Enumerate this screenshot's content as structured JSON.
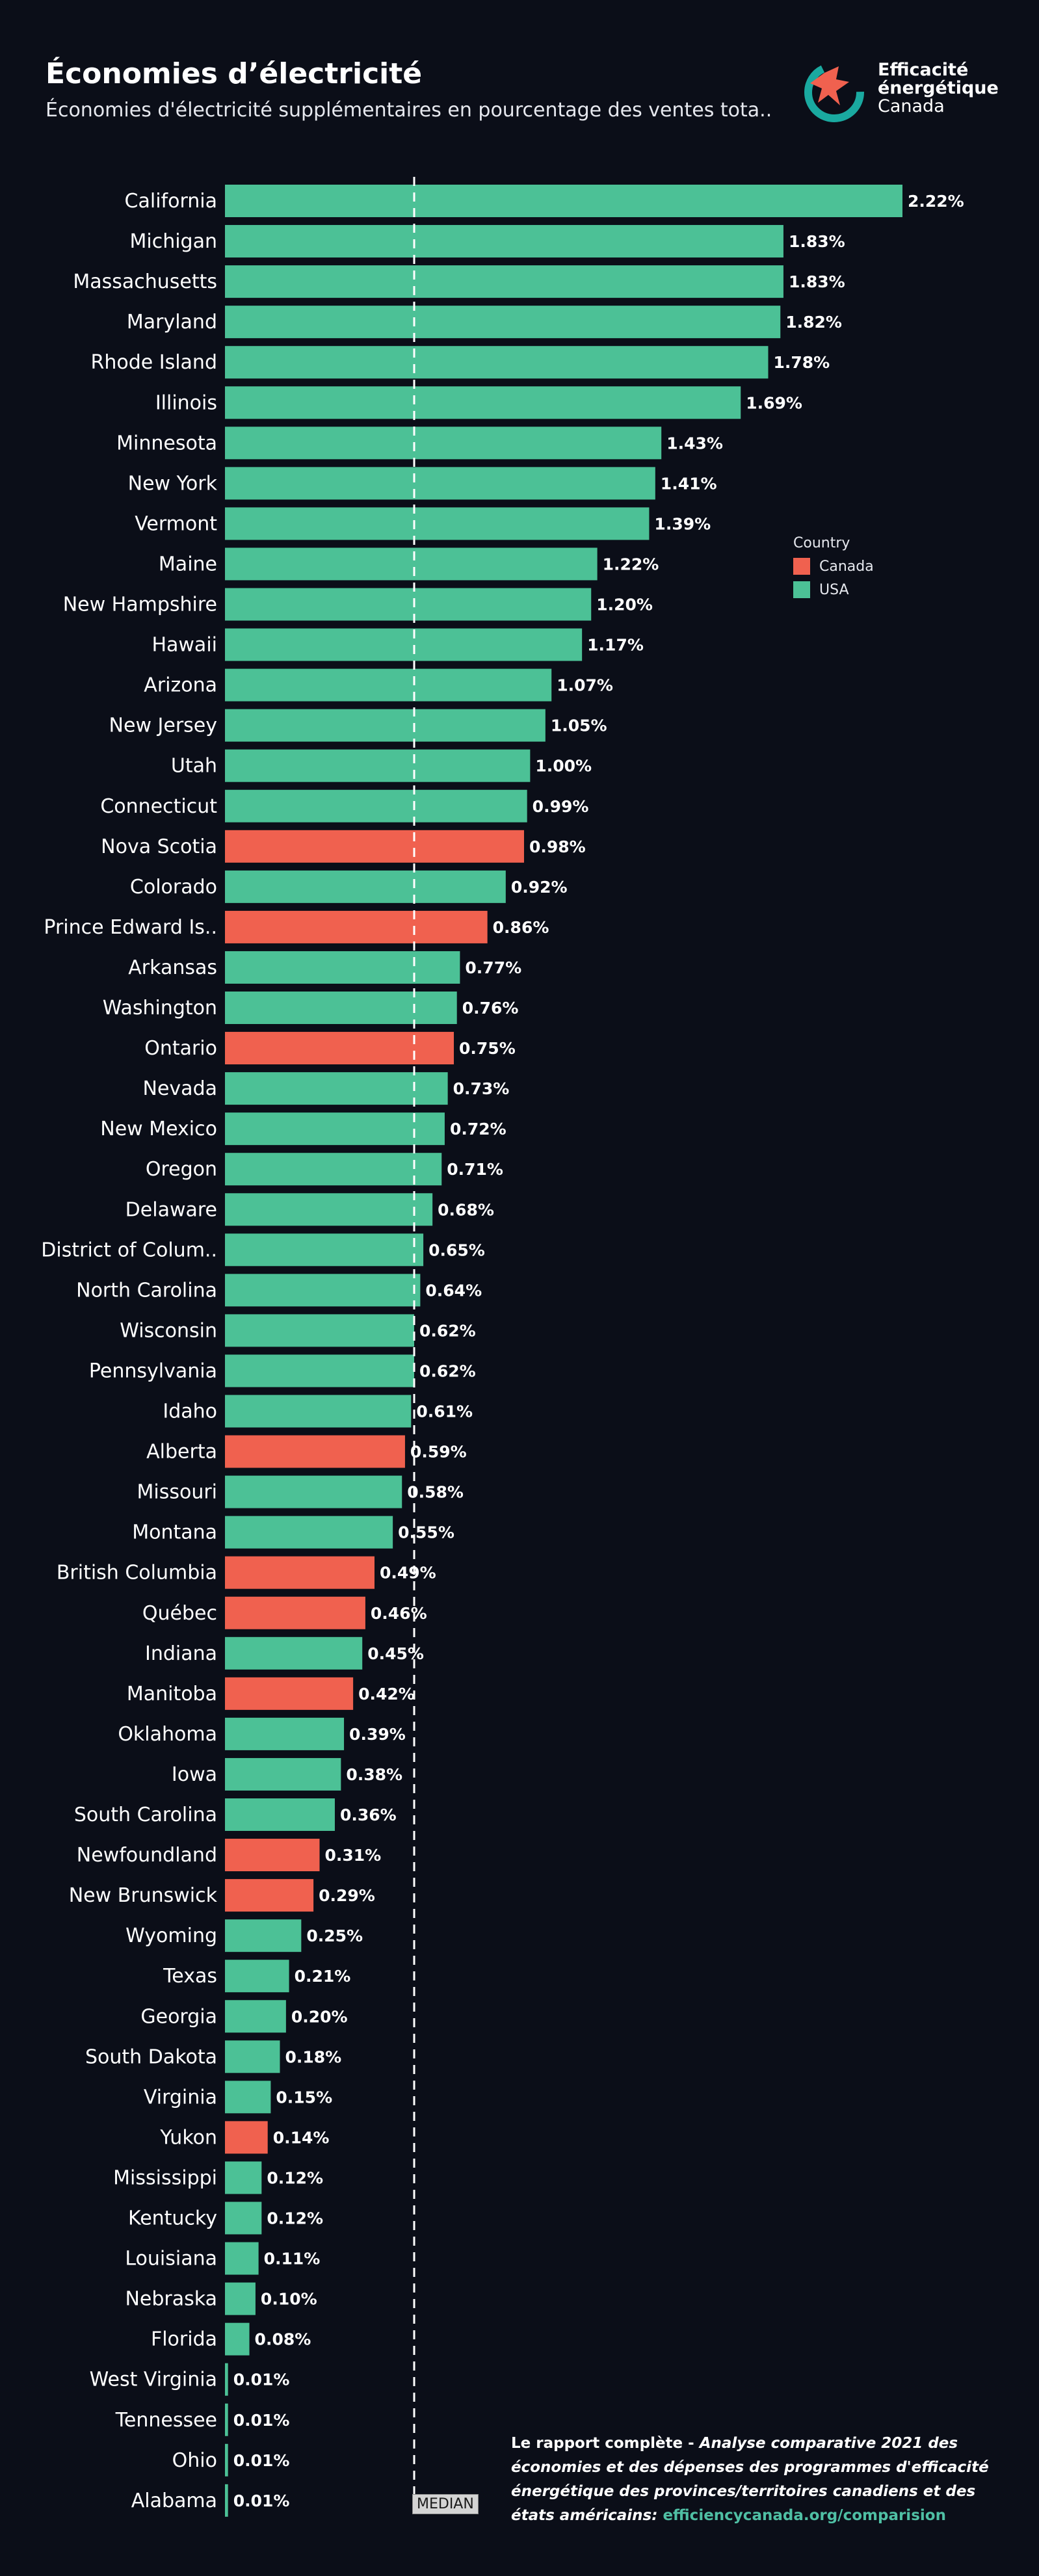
{
  "header": {
    "title": "Économies d’électricité",
    "subtitle": "Économies d'électricité supplémentaires en pourcentage des ventes tota.."
  },
  "logo": {
    "line1": "Efficacité",
    "line2": "énergétique",
    "line3": "Canada"
  },
  "legend": {
    "title": "Country",
    "items": [
      {
        "label": "Canada",
        "color": "#f0614f"
      },
      {
        "label": "USA",
        "color": "#4cc196"
      }
    ]
  },
  "median_label": "MEDIAN",
  "footer": {
    "lead": "Le rapport complète - ",
    "report": "Analyse comparative 2021 des économies et des dépenses des programmes d'efficacité énergétique des provinces/territoires canadiens et des états américains:",
    "link": "efficiencycanada.org/comparision"
  },
  "chart_data": {
    "type": "bar",
    "orientation": "horizontal",
    "median": 0.62,
    "categories": [
      "California",
      "Michigan",
      "Massachusetts",
      "Maryland",
      "Rhode Island",
      "Illinois",
      "Minnesota",
      "New York",
      "Vermont",
      "Maine",
      "New Hampshire",
      "Hawaii",
      "Arizona",
      "New Jersey",
      "Utah",
      "Connecticut",
      "Nova Scotia",
      "Colorado",
      "Prince Edward Is..",
      "Arkansas",
      "Washington",
      "Ontario",
      "Nevada",
      "New Mexico",
      "Oregon",
      "Delaware",
      "District of Colum..",
      "North Carolina",
      "Wisconsin",
      "Pennsylvania",
      "Idaho",
      "Alberta",
      "Missouri",
      "Montana",
      "British Columbia",
      "Québec",
      "Indiana",
      "Manitoba",
      "Oklahoma",
      "Iowa",
      "South Carolina",
      "Newfoundland",
      "New Brunswick",
      "Wyoming",
      "Texas",
      "Georgia",
      "South Dakota",
      "Virginia",
      "Yukon",
      "Mississippi",
      "Kentucky",
      "Louisiana",
      "Nebraska",
      "Florida",
      "West Virginia",
      "Tennessee",
      "Ohio",
      "Alabama"
    ],
    "values": [
      2.22,
      1.83,
      1.83,
      1.82,
      1.78,
      1.69,
      1.43,
      1.41,
      1.39,
      1.22,
      1.2,
      1.17,
      1.07,
      1.05,
      1.0,
      0.99,
      0.98,
      0.92,
      0.86,
      0.77,
      0.76,
      0.75,
      0.73,
      0.72,
      0.71,
      0.68,
      0.65,
      0.64,
      0.62,
      0.62,
      0.61,
      0.59,
      0.58,
      0.55,
      0.49,
      0.46,
      0.45,
      0.42,
      0.39,
      0.38,
      0.36,
      0.31,
      0.29,
      0.25,
      0.21,
      0.2,
      0.18,
      0.15,
      0.14,
      0.12,
      0.12,
      0.11,
      0.1,
      0.08,
      0.01,
      0.01,
      0.01,
      0.01
    ],
    "value_labels": [
      "2.22%",
      "1.83%",
      "1.83%",
      "1.82%",
      "1.78%",
      "1.69%",
      "1.43%",
      "1.41%",
      "1.39%",
      "1.22%",
      "1.20%",
      "1.17%",
      "1.07%",
      "1.05%",
      "1.00%",
      "0.99%",
      "0.98%",
      "0.92%",
      "0.86%",
      "0.77%",
      "0.76%",
      "0.75%",
      "0.73%",
      "0.72%",
      "0.71%",
      "0.68%",
      "0.65%",
      "0.64%",
      "0.62%",
      "0.62%",
      "0.61%",
      "0.59%",
      "0.58%",
      "0.55%",
      "0.49%",
      "0.46%",
      "0.45%",
      "0.42%",
      "0.39%",
      "0.38%",
      "0.36%",
      "0.31%",
      "0.29%",
      "0.25%",
      "0.21%",
      "0.20%",
      "0.18%",
      "0.15%",
      "0.14%",
      "0.12%",
      "0.12%",
      "0.11%",
      "0.10%",
      "0.08%",
      "0.01%",
      "0.01%",
      "0.01%",
      "0.01%"
    ],
    "country": [
      "USA",
      "USA",
      "USA",
      "USA",
      "USA",
      "USA",
      "USA",
      "USA",
      "USA",
      "USA",
      "USA",
      "USA",
      "USA",
      "USA",
      "USA",
      "USA",
      "Canada",
      "USA",
      "Canada",
      "USA",
      "USA",
      "Canada",
      "USA",
      "USA",
      "USA",
      "USA",
      "USA",
      "USA",
      "USA",
      "USA",
      "USA",
      "Canada",
      "USA",
      "USA",
      "Canada",
      "Canada",
      "USA",
      "Canada",
      "USA",
      "USA",
      "USA",
      "Canada",
      "Canada",
      "USA",
      "USA",
      "USA",
      "USA",
      "USA",
      "Canada",
      "USA",
      "USA",
      "USA",
      "USA",
      "USA",
      "USA",
      "USA",
      "USA",
      "USA"
    ],
    "xlim": [
      0,
      2.22
    ],
    "grid": false,
    "legend_position": "right"
  }
}
